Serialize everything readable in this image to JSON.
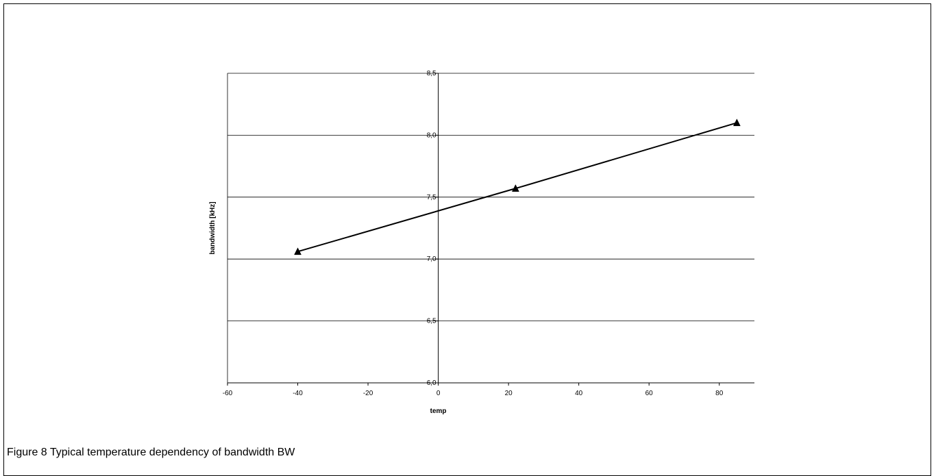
{
  "caption": "Figure 8 Typical temperature dependency of bandwidth BW",
  "chart_data": {
    "type": "line",
    "title": "",
    "xlabel": "temp",
    "ylabel": "bandwidth [kHz]",
    "xlim": [
      -60,
      90
    ],
    "ylim": [
      6.0,
      8.5
    ],
    "x_ticks": [
      -60,
      -40,
      -20,
      0,
      20,
      40,
      60,
      80
    ],
    "x_tick_labels": [
      "-60",
      "-40",
      "-20",
      "0",
      "20",
      "40",
      "60",
      "80"
    ],
    "y_ticks": [
      6.0,
      6.5,
      7.0,
      7.5,
      8.0,
      8.5
    ],
    "y_tick_labels": [
      "6,0",
      "6,5",
      "7,0",
      "7,5",
      "8,0",
      "8,5"
    ],
    "grid": "horizontal",
    "legend": "none",
    "series": [
      {
        "x": [
          -40,
          22,
          85
        ],
        "y": [
          7.06,
          7.57,
          8.1
        ],
        "marker": "triangle",
        "color": "#000000"
      }
    ]
  }
}
